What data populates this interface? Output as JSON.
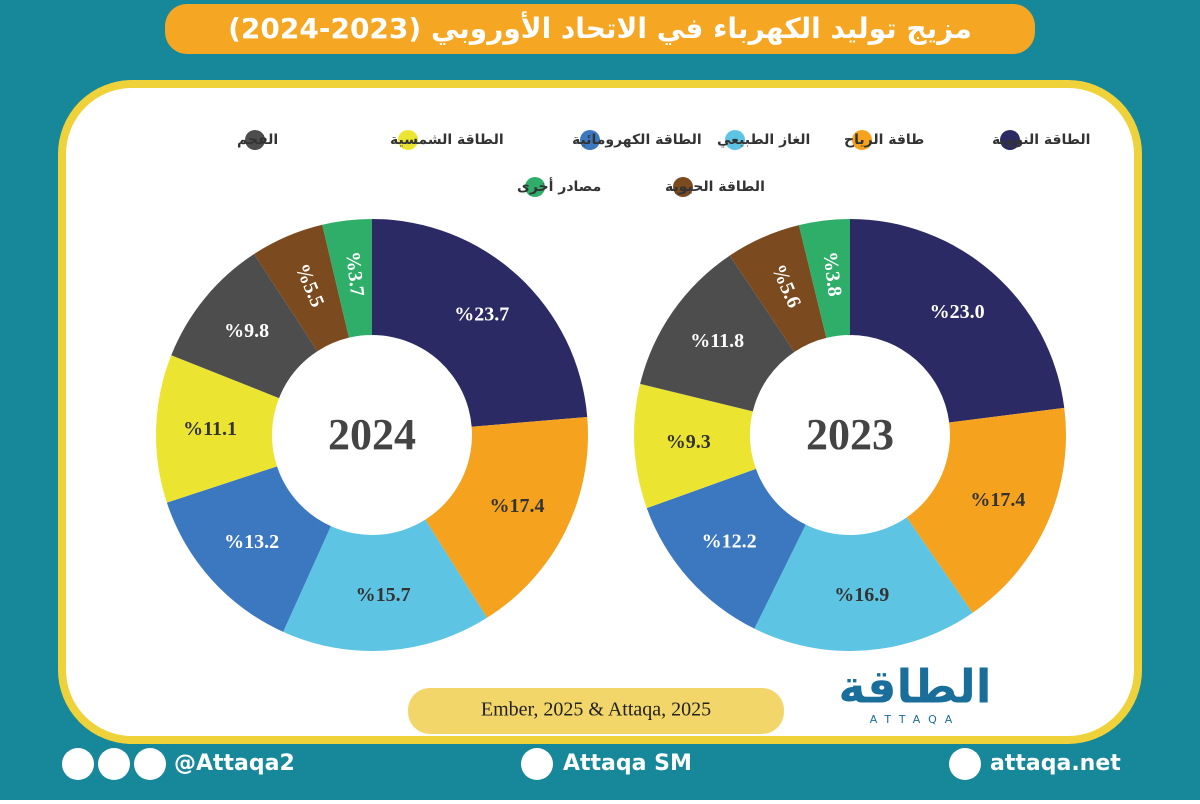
{
  "header": {
    "title": "مزيج توليد الكهرباء في الاتحاد الأوروبي (2023-2024)"
  },
  "chart_data": [
    {
      "type": "donut",
      "title": "2024",
      "categories": [
        "الطاقة النووية",
        "طاقة الرياح",
        "الغاز الطبيعي",
        "الطاقة الكهرومائية",
        "الطاقة الشمسية",
        "الفحم",
        "الطاقة الحيوية",
        "مصادر أخرى"
      ],
      "colors": [
        "#2b2a64",
        "#f5a21e",
        "#5ec4e4",
        "#3b78c0",
        "#ebe532",
        "#4d4d4d",
        "#7b4a1e",
        "#2fae6a"
      ],
      "values": [
        23.7,
        17.4,
        15.7,
        13.2,
        11.1,
        9.8,
        5.5,
        3.7
      ],
      "value_labels": [
        "%23.7",
        "%17.4",
        "%15.7",
        "%13.2",
        "%11.1",
        "%9.8",
        "%5.5",
        "%3.7"
      ]
    },
    {
      "type": "donut",
      "title": "2023",
      "categories": [
        "الطاقة النووية",
        "طاقة الرياح",
        "الغاز الطبيعي",
        "الطاقة الكهرومائية",
        "الطاقة الشمسية",
        "الفحم",
        "الطاقة الحيوية",
        "مصادر أخرى"
      ],
      "colors": [
        "#2b2a64",
        "#f5a21e",
        "#5ec4e4",
        "#3b78c0",
        "#ebe532",
        "#4d4d4d",
        "#7b4a1e",
        "#2fae6a"
      ],
      "values": [
        23.0,
        17.4,
        16.9,
        12.2,
        9.3,
        11.8,
        5.6,
        3.8
      ],
      "value_labels": [
        "%23.0",
        "%17.4",
        "%16.9",
        "%12.2",
        "%9.3",
        "%11.8",
        "%5.6",
        "%3.8"
      ]
    }
  ],
  "source": "Ember, 2025 & Attaqa, 2025",
  "logo": {
    "name": "الطاقة",
    "latin": "ATTAQA"
  },
  "footer": {
    "social": "@Attaqa2",
    "youtube": "Attaqa SM",
    "website": "attaqa.net"
  }
}
